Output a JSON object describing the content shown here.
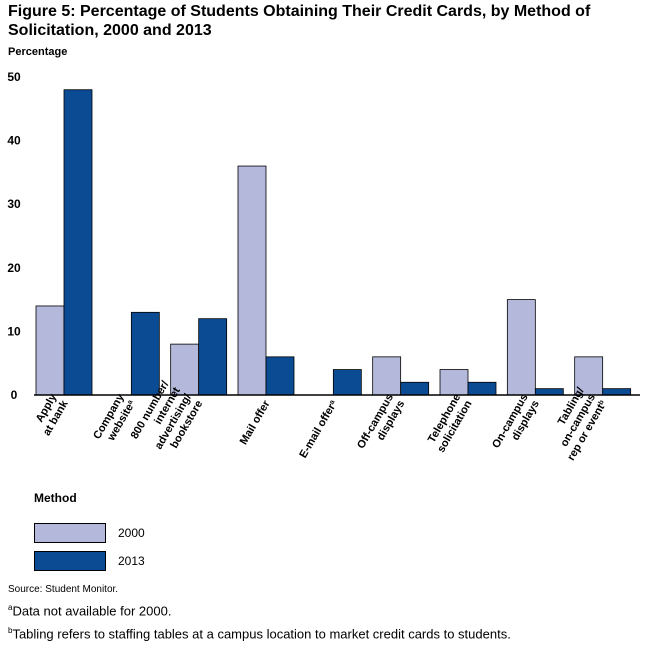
{
  "title": "Figure 5: Percentage of Students Obtaining Their Credit Cards, by Method of Solicitation, 2000 and 2013",
  "legend_title": "Method",
  "source": "Source: Student Monitor.",
  "notes": [
    {
      "marker": "a",
      "text": "Data not available for 2000."
    },
    {
      "marker": "b",
      "text": "Tabling refers to staffing tables at a campus location to market credit cards to students."
    }
  ],
  "colors": {
    "s2000": "#b4b9dc",
    "s2013": "#0a4b94"
  },
  "chart_data": {
    "type": "bar",
    "ylabel": "Percentage",
    "ylim": [
      0,
      50
    ],
    "yticks": [
      0,
      10,
      20,
      30,
      40,
      50
    ],
    "grid": false,
    "legend_position": "bottom-left",
    "categories": [
      {
        "lines": [
          "Apply",
          "at bank"
        ],
        "sup": ""
      },
      {
        "lines": [
          "Company",
          "website"
        ],
        "sup": "a"
      },
      {
        "lines": [
          "800 number/",
          "internet",
          "advertising/",
          "bookstore"
        ],
        "sup": ""
      },
      {
        "lines": [
          "Mail offer"
        ],
        "sup": ""
      },
      {
        "lines": [
          "E-mail offer"
        ],
        "sup": "a"
      },
      {
        "lines": [
          "Off-campus",
          "displays"
        ],
        "sup": ""
      },
      {
        "lines": [
          "Telephone",
          "solicitation"
        ],
        "sup": ""
      },
      {
        "lines": [
          "On-campus",
          "displays"
        ],
        "sup": ""
      },
      {
        "lines": [
          "Tabling/",
          "on-campus",
          "rep or event"
        ],
        "sup": "b"
      }
    ],
    "series": [
      {
        "name": "2000",
        "values": [
          14,
          null,
          8,
          36,
          null,
          6,
          4,
          15,
          6
        ]
      },
      {
        "name": "2013",
        "values": [
          48,
          13,
          12,
          6,
          4,
          2,
          2,
          1,
          1
        ]
      }
    ]
  }
}
